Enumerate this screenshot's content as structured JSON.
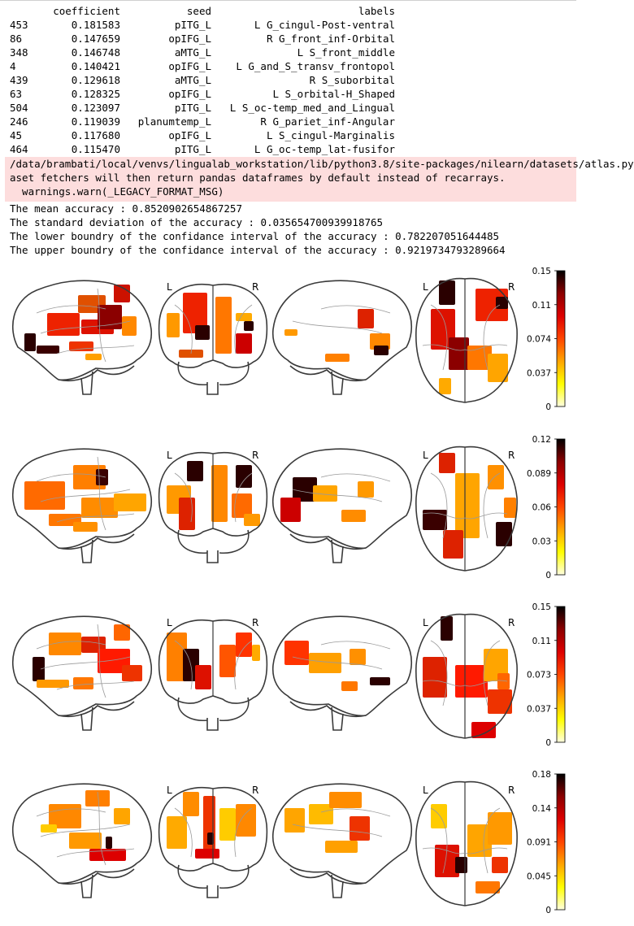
{
  "dataframe": {
    "columns": [
      "",
      "coefficient",
      "seed",
      "labels"
    ],
    "rows": [
      {
        "index": "453",
        "coefficient": "0.181583",
        "seed": "pITG_L",
        "labels": "L G_cingul-Post-ventral"
      },
      {
        "index": "86",
        "coefficient": "0.147659",
        "seed": "opIFG_L",
        "labels": "R G_front_inf-Orbital"
      },
      {
        "index": "348",
        "coefficient": "0.146748",
        "seed": "aMTG_L",
        "labels": "L S_front_middle"
      },
      {
        "index": "4",
        "coefficient": "0.140421",
        "seed": "opIFG_L",
        "labels": "L G_and_S_transv_frontopol"
      },
      {
        "index": "439",
        "coefficient": "0.129618",
        "seed": "aMTG_L",
        "labels": "R S_suborbital"
      },
      {
        "index": "63",
        "coefficient": "0.128325",
        "seed": "opIFG_L",
        "labels": "L S_orbital-H_Shaped"
      },
      {
        "index": "504",
        "coefficient": "0.123097",
        "seed": "pITG_L",
        "labels": "L S_oc-temp_med_and_Lingual"
      },
      {
        "index": "246",
        "coefficient": "0.119039",
        "seed": "planumtemp_L",
        "labels": "R G_pariet_inf-Angular"
      },
      {
        "index": "45",
        "coefficient": "0.117680",
        "seed": "opIFG_L",
        "labels": "L S_cingul-Marginalis"
      },
      {
        "index": "464",
        "coefficient": "0.115470",
        "seed": "pITG_L",
        "labels": "L G_oc-temp_lat-fusifor"
      }
    ]
  },
  "stderr": [
    "/data/brambati/local/venvs/lingualab_workstation/lib/python3.8/site-packages/nilearn/datasets/atlas.py",
    "aset fetchers will then return pandas dataframes by default instead of recarrays.",
    "  warnings.warn(_LEGACY_FORMAT_MSG)"
  ],
  "stdout": [
    "The mean accuracy : 0.8520902654867257",
    "The standard deviation of the accuracy : 0.035654700939918765",
    "The lower boundry of the confidance interval of the accuracy : 0.782207051644485",
    "The upper boundry of the confidance interval of the accuracy : 0.9219734793289664"
  ],
  "figures": [
    {
      "colorbar_ticks": [
        "0.15",
        "0.11",
        "0.074",
        "0.037",
        "0"
      ],
      "left_label": "L",
      "right_label": "R"
    },
    {
      "colorbar_ticks": [
        "0.12",
        "0.089",
        "0.06",
        "0.03",
        "0"
      ],
      "left_label": "L",
      "right_label": "R"
    },
    {
      "colorbar_ticks": [
        "0.15",
        "0.11",
        "0.073",
        "0.037",
        "0"
      ],
      "left_label": "L",
      "right_label": "R"
    },
    {
      "colorbar_ticks": [
        "0.18",
        "0.14",
        "0.091",
        "0.045",
        "0"
      ],
      "left_label": "L",
      "right_label": "R"
    }
  ],
  "colormap": {
    "name": "hot_r",
    "stops": [
      "#ffffe0",
      "#ffff00",
      "#ffa500",
      "#ff4500",
      "#dd0000",
      "#8b0000",
      "#000000"
    ]
  }
}
